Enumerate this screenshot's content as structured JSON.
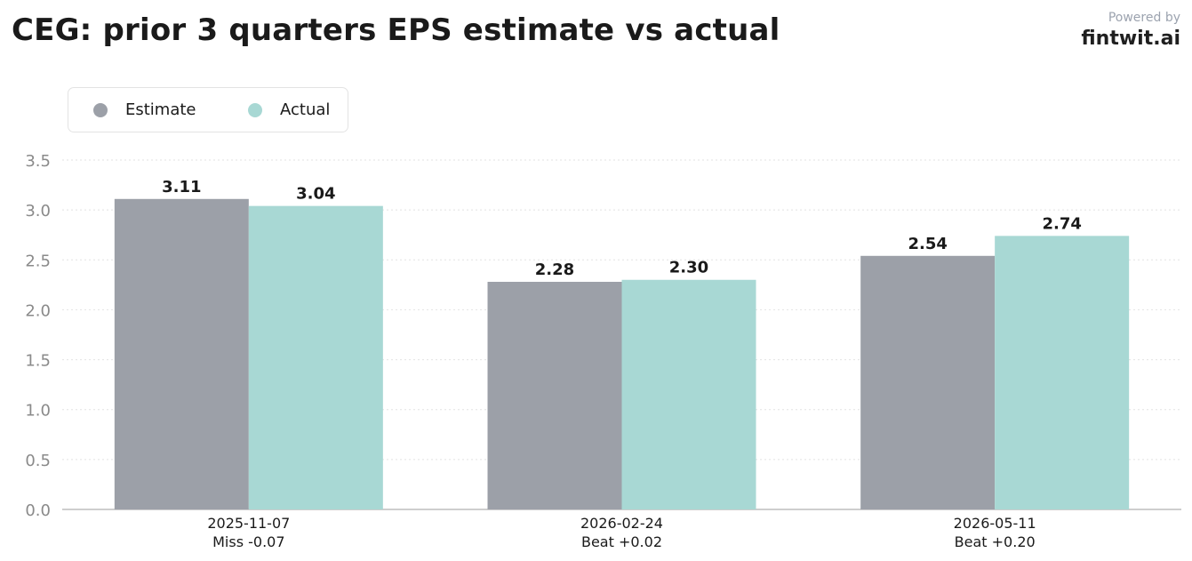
{
  "title": "CEG: prior 3 quarters EPS estimate vs actual",
  "brand": {
    "powered_by": "Powered by",
    "name": "fintwit.ai"
  },
  "legend": {
    "items": [
      {
        "label": "Estimate",
        "color": "#9ca0a8"
      },
      {
        "label": "Actual",
        "color": "#a8d8d4"
      }
    ]
  },
  "chart_data": {
    "type": "bar",
    "title": "CEG: prior 3 quarters EPS estimate vs actual",
    "xlabel": "",
    "ylabel": "",
    "categories": [
      "2025-11-07",
      "2026-02-24",
      "2026-05-11"
    ],
    "category_sublabels": [
      "Miss -0.07",
      "Beat +0.02",
      "Beat +0.20"
    ],
    "series": [
      {
        "name": "Estimate",
        "color": "#9ca0a8",
        "values": [
          3.11,
          2.28,
          2.54
        ],
        "value_labels": [
          "3.11",
          "2.28",
          "2.54"
        ]
      },
      {
        "name": "Actual",
        "color": "#a8d8d4",
        "values": [
          3.04,
          2.3,
          2.74
        ],
        "value_labels": [
          "3.04",
          "2.30",
          "2.74"
        ]
      }
    ],
    "ylim": [
      0,
      3.5
    ],
    "yticks": [
      0.0,
      0.5,
      1.0,
      1.5,
      2.0,
      2.5,
      3.0,
      3.5
    ],
    "ytick_labels": [
      "0.0",
      "0.5",
      "1.0",
      "1.5",
      "2.0",
      "2.5",
      "3.0",
      "3.5"
    ],
    "grid": true,
    "legend_position": "top-left"
  }
}
